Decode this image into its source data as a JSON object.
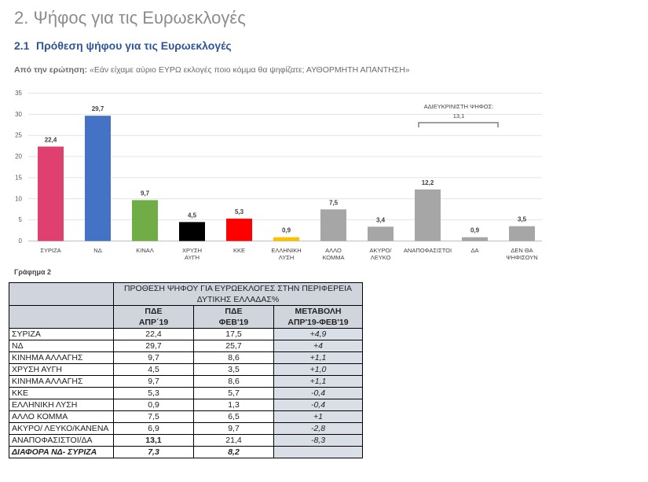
{
  "page": {
    "heading": "2. Ψήφος για τις Ευρωεκλογές",
    "subheading_num": "2.1",
    "subheading": "Πρόθεση ψήφου για τις Ευρωεκλογές",
    "question_lead": "Από την ερώτηση:",
    "question_text": " «Εάν είχαμε αύριο ΕΥΡΩ εκλογές ποιο κόμμα θα ψηφίζατε; ΑΥΘΟΡΜΗΤΗ ΑΠΑΝΤΗΣΗ»",
    "caption": "Γράφημα 2"
  },
  "chart_data": {
    "type": "bar",
    "title": "",
    "xlabel": "",
    "ylabel": "",
    "ylim": [
      0,
      35
    ],
    "yticks": [
      0,
      5,
      10,
      15,
      20,
      25,
      30,
      35
    ],
    "grid": true,
    "categories": [
      [
        "ΣΥΡΙΖΑ"
      ],
      [
        "ΝΔ"
      ],
      [
        "ΚΙΝΑΛ"
      ],
      [
        "ΧΡΥΣΗ",
        "ΑΥΓΗ"
      ],
      [
        "ΚΚΕ"
      ],
      [
        "ΕΛΛΗΝΙΚΗ",
        "ΛΥΣΗ"
      ],
      [
        "ΑΛΛΟ",
        "ΚΟΜΜΑ"
      ],
      [
        "ΑΚΥΡΟ/",
        "ΛΕΥΚΟ"
      ],
      [
        "ΑΝΑΠΟΦΑΣΙΣΤΟΙ"
      ],
      [
        "ΔΑ"
      ],
      [
        "ΔΕΝ ΘΑ",
        "ΨΗΦΙΣΟΥΝ"
      ]
    ],
    "values": [
      22.4,
      29.7,
      9.7,
      4.5,
      5.3,
      0.9,
      7.5,
      3.4,
      12.2,
      0.9,
      3.5
    ],
    "value_labels": [
      "22,4",
      "29,7",
      "9,7",
      "4,5",
      "5,3",
      "0,9",
      "7,5",
      "3,4",
      "12,2",
      "0,9",
      "3,5"
    ],
    "colors": [
      "#e04070",
      "#4472c4",
      "#70ad47",
      "#000000",
      "#ff0000",
      "#ffc000",
      "#a6a6a6",
      "#a6a6a6",
      "#a6a6a6",
      "#a6a6a6",
      "#a6a6a6"
    ],
    "annotation": {
      "label": "ΑΔΙΕΥΚΡΙΝΙΣΤΗ ΨΗΦΟΣ:",
      "value": "13,1",
      "spans": [
        "ΑΝΑΠΟΦΑΣΙΣΤΟΙ",
        "ΔΑ"
      ]
    }
  },
  "table": {
    "title": "ΠΡΟΘΕΣΗ ΨΗΦΟΥ ΓΙΑ ΕΥΡΩΕΚΛΟΓΕΣ ΣΤΗΝ ΠΕΡΙΦΕΡΕΙΑ ΔΥΤΙΚΗΣ ΕΛΛΑΔΑΣ%",
    "col1_line1": "ΠΔΕ",
    "col1_line2": "ΑΠΡ΄19",
    "col2_line1": "ΠΔΕ",
    "col2_line2": "ΦΕΒ'19",
    "col3_line1": "ΜΕΤΑΒΟΛΗ",
    "col3_line2": "ΑΠΡ'19-ΦΕΒ'19",
    "rows": [
      {
        "label": "ΣΥΡΙΖΑ",
        "apr": "22,4",
        "feb": "17,5",
        "chg": "+4,9"
      },
      {
        "label": "ΝΔ",
        "apr": "29,7",
        "feb": "25,7",
        "chg": "+4"
      },
      {
        "label": "ΚΙΝΗΜΑ ΑΛΛΑΓΗΣ",
        "apr": "9,7",
        "feb": "8,6",
        "chg": "+1,1"
      },
      {
        "label": "ΧΡΥΣΗ ΑΥΓΗ",
        "apr": "4,5",
        "feb": "3,5",
        "chg": "+1,0"
      },
      {
        "label": "ΚΙΝΗΜΑ ΑΛΛΑΓΗΣ",
        "apr": "9,7",
        "feb": "8,6",
        "chg": "+1,1"
      },
      {
        "label": "ΚΚΕ",
        "apr": "5,3",
        "feb": "5,7",
        "chg": "-0,4"
      },
      {
        "label": "ΕΛΛΗΝΙΚΗ ΛΥΣΗ",
        "apr": "0,9",
        "feb": "1,3",
        "chg": "-0,4"
      },
      {
        "label": "ΑΛΛΟ ΚΟΜΜΑ",
        "apr": "7,5",
        "feb": "6,5",
        "chg": "+1"
      },
      {
        "label": "ΑΚΥΡΟ/ ΛΕΥΚΟ/ΚΑΝΕΝΑ",
        "apr": "6,9",
        "feb": "9,7",
        "chg": "-2,8"
      },
      {
        "label": "ΑΝΑΠΟΦΑΣΙΣΤΟΙ/ΔΑ",
        "apr": "13,1",
        "feb": "21,4",
        "chg": "-8,3",
        "apr_bold": true
      }
    ],
    "diff": {
      "label": "ΔΙΑΦΟΡΑ ΝΔ- ΣΥΡΙΖΑ",
      "apr": "7,3",
      "feb": "8,2",
      "chg": ""
    }
  }
}
